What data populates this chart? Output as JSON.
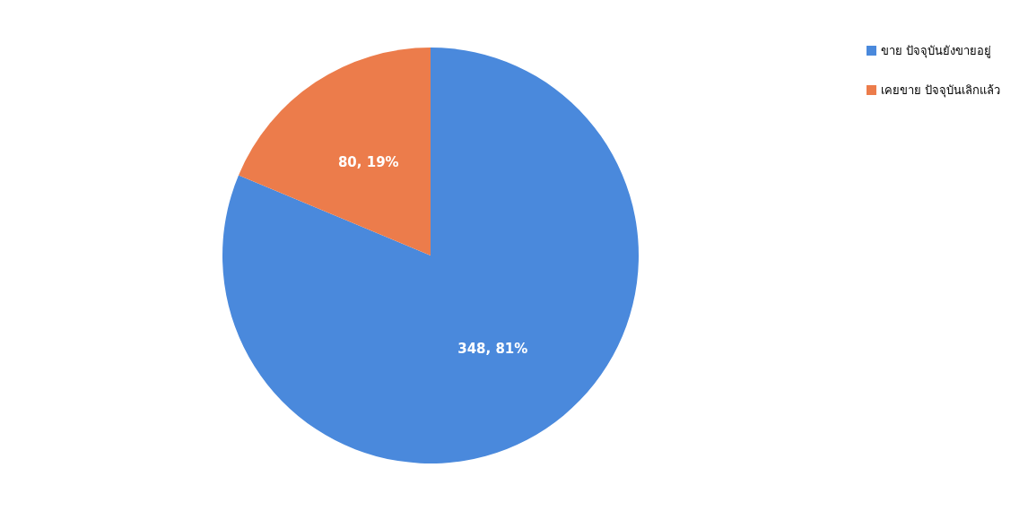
{
  "chart_data": {
    "type": "pie",
    "categories": [
      "ขาย ปัจจุบันยังขายอยู่",
      "เคยขาย ปัจจุบันเลิกแล้ว"
    ],
    "values": [
      348,
      80
    ],
    "colors": [
      "#4a89dc",
      "#ec7c4b"
    ],
    "value_labels": [
      "348, 81%",
      "80, 19%"
    ],
    "legend": "top right"
  }
}
